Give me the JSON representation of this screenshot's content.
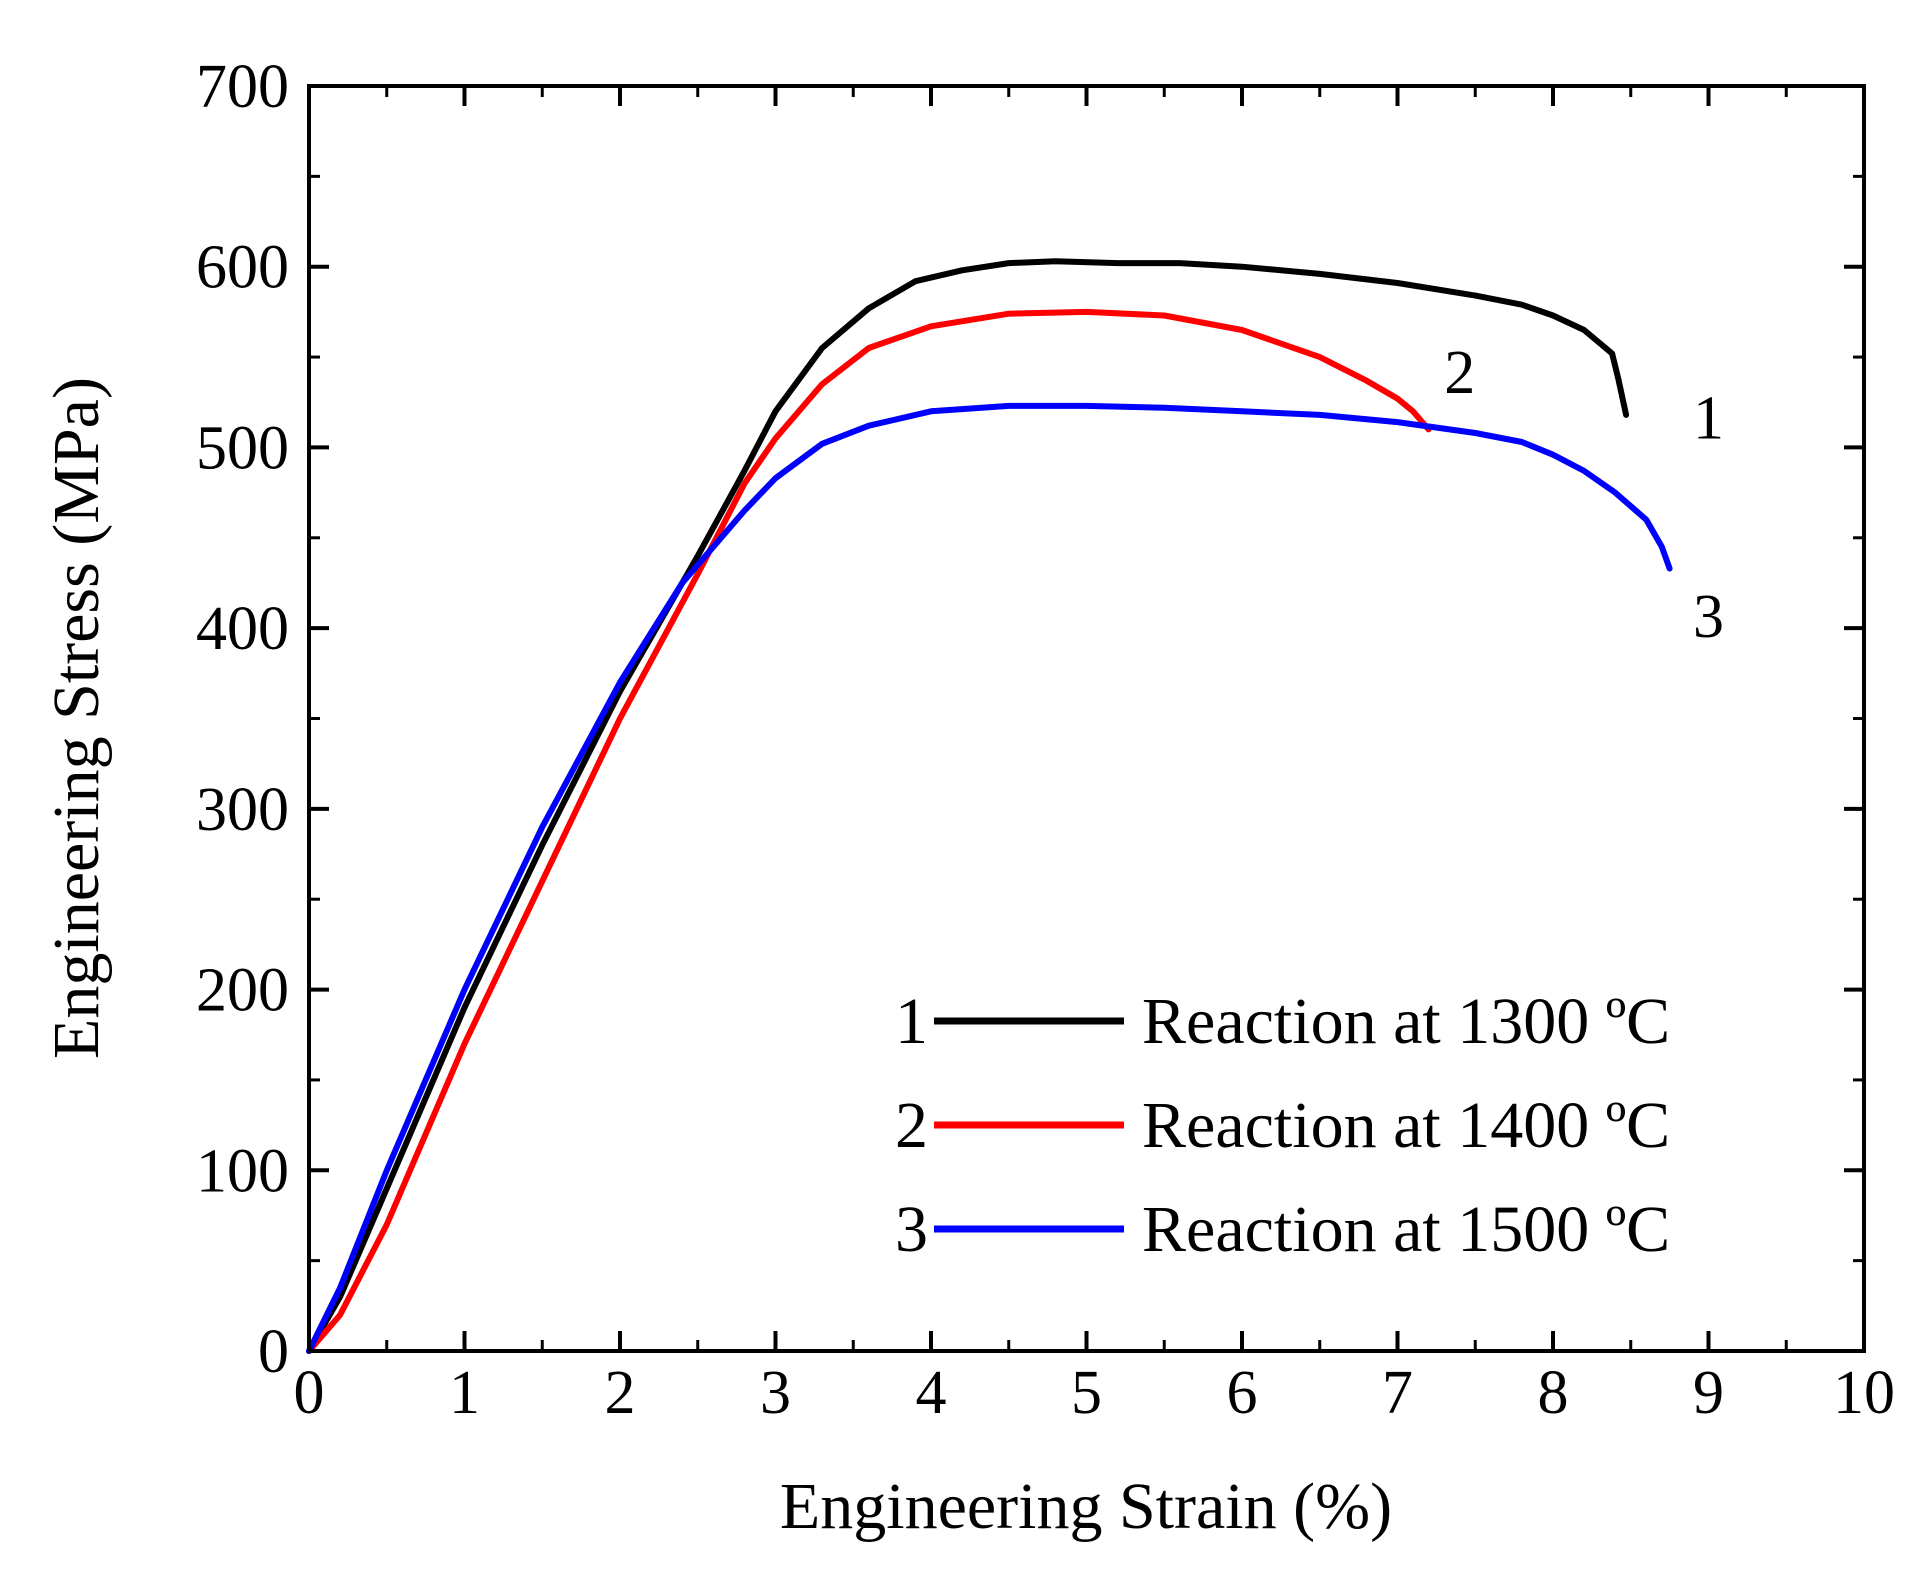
{
  "chart_data": {
    "type": "line",
    "title": "",
    "xlabel": "Engineering Strain (%)",
    "ylabel": "Engineering Stress (MPa)",
    "xlim": [
      0,
      10
    ],
    "ylim": [
      0,
      700
    ],
    "xticks": [
      0,
      1,
      2,
      3,
      4,
      5,
      6,
      7,
      8,
      9,
      10
    ],
    "yticks": [
      0,
      100,
      200,
      300,
      400,
      500,
      600,
      700
    ],
    "grid": false,
    "legend_position": "bottom-right",
    "series": [
      {
        "id": "1",
        "name": "Reaction at 1300 ºC",
        "color": "#000000",
        "end_label": "1",
        "x": [
          0,
          0.2,
          0.5,
          1.0,
          1.5,
          2.0,
          2.5,
          2.8,
          3.0,
          3.3,
          3.6,
          3.9,
          4.2,
          4.5,
          4.8,
          5.2,
          5.6,
          6.0,
          6.5,
          7.0,
          7.5,
          7.8,
          8.0,
          8.2,
          8.38,
          8.42,
          8.47
        ],
        "y": [
          0,
          30,
          90,
          190,
          280,
          365,
          440,
          487,
          520,
          555,
          577,
          592,
          598,
          602,
          603,
          602,
          602,
          600,
          596,
          591,
          584,
          579,
          573,
          565,
          552,
          538,
          518
        ]
      },
      {
        "id": "2",
        "name": "Reaction at 1400 ºC",
        "color": "#ff0000",
        "end_label": "2",
        "x": [
          0,
          0.2,
          0.5,
          1.0,
          1.5,
          2.0,
          2.5,
          2.8,
          3.0,
          3.3,
          3.6,
          4.0,
          4.5,
          5.0,
          5.5,
          6.0,
          6.5,
          6.8,
          7.0,
          7.1,
          7.2
        ],
        "y": [
          0,
          20,
          70,
          170,
          260,
          350,
          430,
          480,
          505,
          535,
          555,
          567,
          574,
          575,
          573,
          565,
          550,
          537,
          527,
          520,
          510
        ]
      },
      {
        "id": "3",
        "name": "Reaction at 1500 ºC",
        "color": "#0000ff",
        "end_label": "3",
        "x": [
          0,
          0.2,
          0.5,
          1.0,
          1.5,
          2.0,
          2.4,
          2.8,
          3.0,
          3.3,
          3.6,
          4.0,
          4.5,
          5.0,
          5.5,
          6.0,
          6.5,
          7.0,
          7.5,
          7.8,
          8.0,
          8.2,
          8.4,
          8.6,
          8.7,
          8.75
        ],
        "y": [
          0,
          35,
          100,
          200,
          290,
          370,
          425,
          465,
          483,
          502,
          512,
          520,
          523,
          523,
          522,
          520,
          518,
          514,
          508,
          503,
          496,
          487,
          475,
          460,
          445,
          433
        ]
      }
    ],
    "end_label_anchors": [
      {
        "label": "1",
        "x": 9.0,
        "y": 505
      },
      {
        "label": "2",
        "x": 7.4,
        "y": 530
      },
      {
        "label": "3",
        "x": 9.0,
        "y": 395
      }
    ]
  }
}
